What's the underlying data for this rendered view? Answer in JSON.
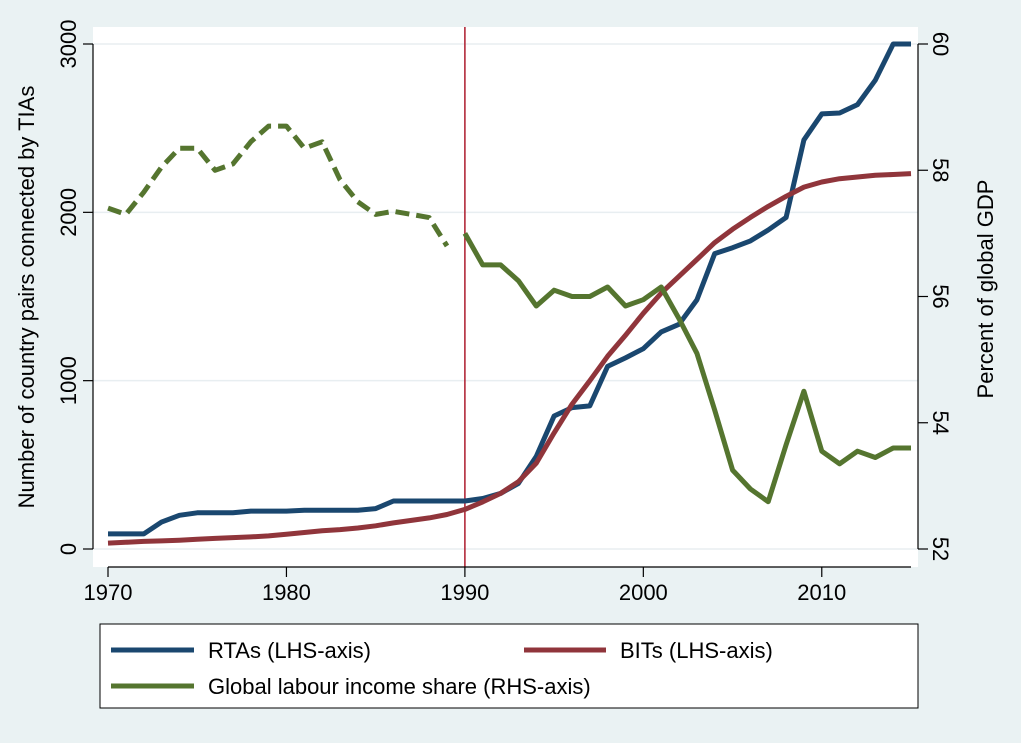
{
  "chart_data": {
    "type": "line",
    "title": "",
    "xlabel": "",
    "ylabel_left": "Number of country pairs connected by TIAs",
    "ylabel_right": "Percent of global GDP",
    "xlim": [
      1970,
      2015
    ],
    "ylim_left": [
      0,
      3000
    ],
    "ylim_right": [
      52,
      60
    ],
    "x_ticks": [
      1970,
      1980,
      1990,
      2000,
      2010
    ],
    "y_ticks_left": [
      0,
      1000,
      2000,
      3000
    ],
    "y_ticks_right": [
      52,
      54,
      56,
      58,
      60
    ],
    "grid": true,
    "reference_line": {
      "axis": "x",
      "value": 1990,
      "color": "#b22a3a"
    },
    "legend_position": "bottom",
    "series": [
      {
        "name": "RTAs (LHS-axis)",
        "axis": "left",
        "color": "#1a476f",
        "x": [
          1970,
          1971,
          1972,
          1973,
          1974,
          1975,
          1976,
          1977,
          1978,
          1979,
          1980,
          1981,
          1982,
          1983,
          1984,
          1985,
          1986,
          1987,
          1988,
          1989,
          1990,
          1991,
          1992,
          1993,
          1994,
          1995,
          1996,
          1997,
          1998,
          1999,
          2000,
          2001,
          2002,
          2003,
          2004,
          2005,
          2006,
          2007,
          2008,
          2009,
          2010,
          2011,
          2012,
          2013,
          2014,
          2015
        ],
        "values": [
          90,
          90,
          90,
          160,
          200,
          215,
          215,
          215,
          225,
          225,
          225,
          230,
          230,
          230,
          230,
          240,
          285,
          285,
          285,
          285,
          285,
          300,
          330,
          390,
          550,
          790,
          840,
          850,
          1085,
          1135,
          1190,
          1290,
          1335,
          1480,
          1755,
          1790,
          1830,
          1895,
          1970,
          2430,
          2585,
          2590,
          2640,
          2785,
          3000,
          3000
        ]
      },
      {
        "name": "BITs (LHS-axis)",
        "axis": "left",
        "color": "#90353b",
        "x": [
          1970,
          1971,
          1972,
          1973,
          1974,
          1975,
          1976,
          1977,
          1978,
          1979,
          1980,
          1981,
          1982,
          1983,
          1984,
          1985,
          1986,
          1987,
          1988,
          1989,
          1990,
          1991,
          1992,
          1993,
          1994,
          1995,
          1996,
          1997,
          1998,
          1999,
          2000,
          2001,
          2002,
          2003,
          2004,
          2005,
          2006,
          2007,
          2008,
          2009,
          2010,
          2011,
          2012,
          2013,
          2014,
          2015
        ],
        "values": [
          35,
          40,
          45,
          48,
          52,
          58,
          63,
          68,
          72,
          78,
          88,
          98,
          108,
          115,
          125,
          138,
          155,
          170,
          185,
          205,
          235,
          280,
          330,
          400,
          510,
          690,
          860,
          1000,
          1145,
          1270,
          1400,
          1520,
          1620,
          1720,
          1820,
          1900,
          1970,
          2035,
          2095,
          2150,
          2180,
          2200,
          2210,
          2220,
          2225,
          2230
        ]
      },
      {
        "name": "Global labour income share (RHS-axis)",
        "axis": "right",
        "color": "#55752f",
        "segments": [
          {
            "style": "dashed",
            "x": [
              1970,
              1971,
              1972,
              1973,
              1974,
              1975,
              1976,
              1977,
              1978,
              1979,
              1980,
              1981,
              1982,
              1983,
              1984,
              1985,
              1986,
              1987,
              1988,
              1989
            ],
            "values": [
              57.4,
              57.3,
              57.65,
              58.05,
              58.35,
              58.35,
              58.0,
              58.1,
              58.45,
              58.7,
              58.7,
              58.35,
              58.45,
              57.85,
              57.5,
              57.3,
              57.35,
              57.3,
              57.25,
              56.8
            ]
          },
          {
            "style": "solid",
            "x": [
              1990,
              1991,
              1992,
              1993,
              1994,
              1995,
              1996,
              1997,
              1998,
              1999,
              2000,
              2001,
              2002,
              2003,
              2004,
              2005,
              2006,
              2007,
              2008,
              2009,
              2010,
              2011,
              2012,
              2013,
              2014,
              2015
            ],
            "values": [
              57.0,
              56.5,
              56.5,
              56.25,
              55.85,
              56.1,
              56.0,
              56.0,
              56.15,
              55.85,
              55.95,
              56.15,
              55.65,
              55.1,
              54.2,
              53.25,
              52.95,
              52.75,
              53.65,
              54.5,
              53.55,
              53.35,
              53.55,
              53.45,
              53.6,
              53.6
            ]
          }
        ]
      }
    ]
  }
}
